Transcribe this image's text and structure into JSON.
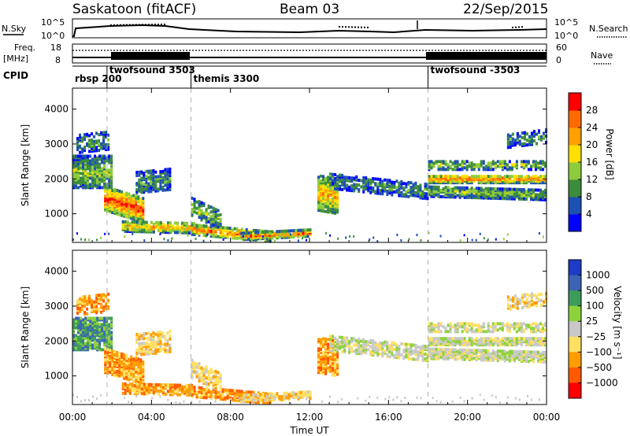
{
  "header": {
    "title_left": "Saskatoon (fitACF)",
    "title_center": "Beam 03",
    "title_right": "22/Sep/2015"
  },
  "panels": {
    "nsky": {
      "label": "N.Sky",
      "left_ticks": [
        "10^5",
        "10^0"
      ],
      "right_ticks": [
        "10^5",
        "10^0"
      ],
      "right_label": "N.Search"
    },
    "freq": {
      "label1": "Freq.",
      "label2": "[MHz]",
      "left_ticks": [
        "18",
        "8"
      ],
      "right_ticks": [
        "60",
        "0"
      ],
      "right_label": "Nave"
    },
    "cpid": {
      "label": "CPID",
      "segments": [
        {
          "label": "rbsp  200",
          "start": 0.0,
          "end": 1.75
        },
        {
          "label": "twofsound 3503",
          "start": 1.75,
          "end": 6.0
        },
        {
          "label": "themis 3300",
          "start": 6.0,
          "end": 18.0
        },
        {
          "label": "twofsound -3503",
          "start": 18.0,
          "end": 24.0
        }
      ]
    }
  },
  "chart_data": [
    {
      "type": "heatmap",
      "ylabel": "Slant Range [km]",
      "ylim": [
        180,
        4600
      ],
      "yticks": [
        "1000",
        "2000",
        "3000",
        "4000"
      ],
      "xlim": [
        0,
        24
      ],
      "colorbar": {
        "label": "Power [dB]",
        "ticks": [
          "4",
          "8",
          "12",
          "16",
          "20",
          "24",
          "28"
        ],
        "range": [
          0,
          30
        ],
        "colors": [
          "#0000ff",
          "#1d50b4",
          "#3c8c3c",
          "#8ccc3c",
          "#ffe000",
          "#ffa000",
          "#ff6a00",
          "#ff0000"
        ]
      }
    },
    {
      "type": "heatmap",
      "ylabel": "Velocity [m s⁻¹]",
      "yaxis_label": "Slant Range [km]",
      "ylim": [
        180,
        4600
      ],
      "yticks": [
        "1000",
        "2000",
        "3000",
        "4000"
      ],
      "xlim": [
        0,
        24
      ],
      "xticks": [
        "00:00",
        "04:00",
        "08:00",
        "12:00",
        "16:00",
        "20:00",
        "00:00"
      ],
      "xlabel": "Time UT",
      "colorbar": {
        "label": "Velocity [m s⁻¹]",
        "ticks": [
          "1000",
          "500",
          "100",
          "25",
          "−25",
          "−100",
          "−500",
          "−1000"
        ],
        "colors": [
          "#1d3cc8",
          "#3c64b4",
          "#3c9c5a",
          "#8cd23c",
          "#c8c8c8",
          "#ffe060",
          "#ff9c00",
          "#ff5a00",
          "#ff0000"
        ]
      }
    }
  ],
  "colors": {
    "grid": "#bbbbbb",
    "dashed": "#b0b0b0"
  }
}
